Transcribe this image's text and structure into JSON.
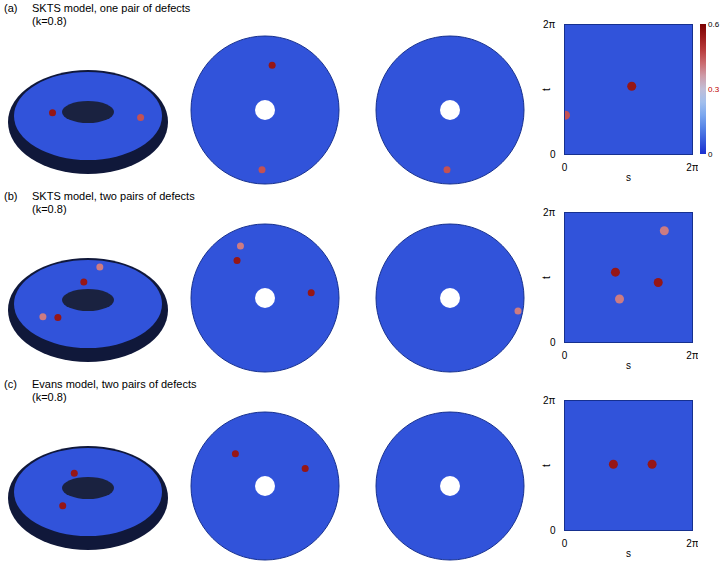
{
  "chart_data": [
    {
      "type": "heatmap",
      "label": "(a)",
      "title": "SKTS model, one pair of defects",
      "subtitle": "(k=0.8)",
      "x_label": "s",
      "y_label": "t",
      "xlim": [
        0,
        6.283
      ],
      "ylim": [
        0,
        6.283
      ],
      "xticks": [
        0,
        {
          "value": 6.283,
          "label": "2π"
        }
      ],
      "yticks": [
        0,
        {
          "value": 6.283,
          "label": "2π"
        }
      ],
      "background_value": 0.05,
      "defects": {
        "s": [
          3.3,
          0.05
        ],
        "t": [
          3.3,
          1.9
        ],
        "values": [
          0.55,
          0.45
        ]
      },
      "colorbar": {
        "range": [
          0,
          0.6
        ],
        "ticks": [
          0,
          0.3,
          0.6
        ]
      }
    },
    {
      "type": "heatmap",
      "label": "(b)",
      "title": "SKTS model, two pairs of defects",
      "subtitle": "(k=0.8)",
      "x_label": "s",
      "y_label": "t",
      "xlim": [
        0,
        6.283
      ],
      "ylim": [
        0,
        6.283
      ],
      "xticks": [
        0,
        {
          "value": 6.283,
          "label": "2π"
        }
      ],
      "yticks": [
        0,
        {
          "value": 6.283,
          "label": "2π"
        }
      ],
      "background_value": 0.05,
      "defects": {
        "s": [
          2.5,
          4.6,
          4.9,
          2.7
        ],
        "t": [
          3.4,
          2.9,
          5.4,
          2.1
        ],
        "values": [
          0.55,
          0.55,
          0.4,
          0.4
        ]
      }
    },
    {
      "type": "heatmap",
      "label": "(c)",
      "title": "Evans model, two pairs of defects",
      "subtitle": "(k=0.8)",
      "x_label": "s",
      "y_label": "t",
      "xlim": [
        0,
        6.283
      ],
      "ylim": [
        0,
        6.283
      ],
      "xticks": [
        0,
        {
          "value": 6.283,
          "label": "2π"
        }
      ],
      "yticks": [
        0,
        {
          "value": 6.283,
          "label": "2π"
        }
      ],
      "background_value": 0.05,
      "defects": {
        "s": [
          2.4,
          4.3
        ],
        "t": [
          3.2,
          3.2
        ],
        "values": [
          0.55,
          0.55
        ]
      }
    }
  ]
}
